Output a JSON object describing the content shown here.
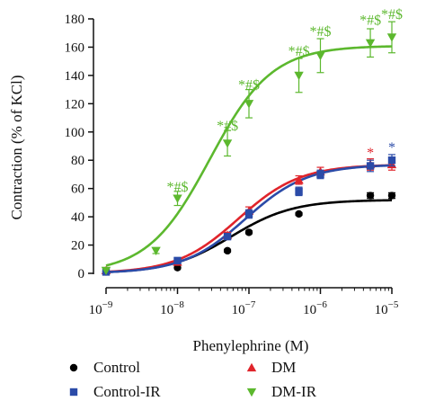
{
  "chart_data": {
    "type": "scatter",
    "x_scale": "log",
    "xlabel": "Phenylephrine (M)",
    "ylabel": "Contraction (% of KCl)",
    "xlim": [
      1e-09,
      1e-05
    ],
    "ylim": [
      0,
      180
    ],
    "y_ticks": [
      "0",
      "20",
      "40",
      "60",
      "80",
      "100",
      "120",
      "140",
      "160",
      "180"
    ],
    "x_ticks": [
      {
        "value": 1e-09,
        "base": "10",
        "exp": "−9"
      },
      {
        "value": 1e-08,
        "base": "10",
        "exp": "−8"
      },
      {
        "value": 1e-07,
        "base": "10",
        "exp": "−7"
      },
      {
        "value": 1e-06,
        "base": "10",
        "exp": "−6"
      },
      {
        "value": 1e-05,
        "base": "10",
        "exp": "−5"
      }
    ],
    "grid": false,
    "legend_position": "bottom",
    "series": [
      {
        "name": "Control",
        "marker": "circle",
        "color": "#000000",
        "points": [
          {
            "x": 1e-09,
            "y": 1,
            "err": 0
          },
          {
            "x": 1e-08,
            "y": 4,
            "err": 0
          },
          {
            "x": 5e-08,
            "y": 16,
            "err": 1
          },
          {
            "x": 1e-07,
            "y": 29,
            "err": 1
          },
          {
            "x": 5e-07,
            "y": 42,
            "err": 1
          },
          {
            "x": 5e-06,
            "y": 55,
            "err": 2
          },
          {
            "x": 1e-05,
            "y": 55,
            "err": 2
          }
        ],
        "curve": {
          "bottom": 0,
          "top": 52,
          "log_ec50": -7.25
        }
      },
      {
        "name": "DM",
        "marker": "triangle-up",
        "color": "#e0242b",
        "points": [
          {
            "x": 1e-09,
            "y": 2,
            "err": 0
          },
          {
            "x": 1e-08,
            "y": 8,
            "err": 1
          },
          {
            "x": 5e-08,
            "y": 27,
            "err": 2
          },
          {
            "x": 1e-07,
            "y": 44,
            "err": 3
          },
          {
            "x": 5e-07,
            "y": 66,
            "err": 3
          },
          {
            "x": 1e-06,
            "y": 72,
            "err": 3
          },
          {
            "x": 5e-06,
            "y": 77,
            "err": 4
          },
          {
            "x": 1e-05,
            "y": 77,
            "err": 4
          }
        ],
        "curve": {
          "bottom": 0,
          "top": 77,
          "log_ec50": -7.15
        }
      },
      {
        "name": "Control-IR",
        "marker": "square",
        "color": "#2b4ba8",
        "points": [
          {
            "x": 1e-09,
            "y": 1,
            "err": 0
          },
          {
            "x": 1e-08,
            "y": 9,
            "err": 1
          },
          {
            "x": 5e-08,
            "y": 26,
            "err": 2
          },
          {
            "x": 1e-07,
            "y": 42,
            "err": 3
          },
          {
            "x": 5e-07,
            "y": 58,
            "err": 3
          },
          {
            "x": 1e-06,
            "y": 70,
            "err": 3
          },
          {
            "x": 5e-06,
            "y": 76,
            "err": 4
          },
          {
            "x": 1e-05,
            "y": 80,
            "err": 4
          }
        ],
        "curve": {
          "bottom": 0,
          "top": 77,
          "log_ec50": -7.05
        }
      },
      {
        "name": "DM-IR",
        "marker": "triangle-down",
        "color": "#5cb82e",
        "points": [
          {
            "x": 1e-09,
            "y": 2,
            "err": 0
          },
          {
            "x": 5e-09,
            "y": 16,
            "err": 2
          },
          {
            "x": 1e-08,
            "y": 53,
            "err": 5
          },
          {
            "x": 5e-08,
            "y": 92,
            "err": 9
          },
          {
            "x": 1e-07,
            "y": 120,
            "err": 10
          },
          {
            "x": 5e-07,
            "y": 140,
            "err": 12
          },
          {
            "x": 1e-06,
            "y": 154,
            "err": 12
          },
          {
            "x": 5e-06,
            "y": 163,
            "err": 10
          },
          {
            "x": 1e-05,
            "y": 167,
            "err": 11
          }
        ],
        "curve": {
          "bottom": 0,
          "top": 161,
          "log_ec50": -7.55
        }
      }
    ],
    "annotations": [
      {
        "text": "*#$",
        "x": 1e-08,
        "y": 58,
        "color": "#5cb82e"
      },
      {
        "text": "*#$",
        "x": 5e-08,
        "y": 101,
        "color": "#5cb82e"
      },
      {
        "text": "*#$",
        "x": 1e-07,
        "y": 130,
        "color": "#5cb82e"
      },
      {
        "text": "*#$",
        "x": 5e-07,
        "y": 154,
        "color": "#5cb82e"
      },
      {
        "text": "*#$",
        "x": 1e-06,
        "y": 168,
        "color": "#5cb82e"
      },
      {
        "text": "*#$",
        "x": 5e-06,
        "y": 176,
        "color": "#5cb82e"
      },
      {
        "text": "*#$",
        "x": 1e-05,
        "y": 180,
        "color": "#5cb82e"
      },
      {
        "text": "*",
        "x": 5e-06,
        "y": 82,
        "color": "#e0242b"
      },
      {
        "text": "*",
        "x": 1e-05,
        "y": 86,
        "color": "#2b4ba8"
      }
    ]
  }
}
